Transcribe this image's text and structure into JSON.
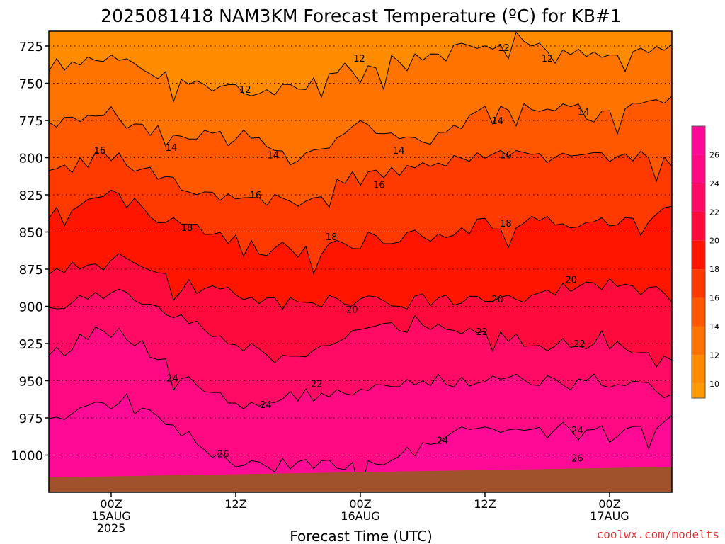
{
  "chart_data": {
    "type": "heatmap",
    "title": "2025081418 NAM3KM Forecast Temperature (ºC) for KB#1",
    "xlabel": "Forecast Time (UTC)",
    "ylabel": "",
    "y_axis": {
      "label": "",
      "ticks": [
        "725",
        "750",
        "775",
        "800",
        "825",
        "850",
        "875",
        "900",
        "925",
        "950",
        "975",
        "1000"
      ],
      "values": [
        725,
        750,
        775,
        800,
        825,
        850,
        875,
        900,
        925,
        950,
        975,
        1000
      ],
      "range": [
        715,
        1025
      ],
      "inverted": true,
      "grid": true
    },
    "x_axis": {
      "range_hours": [
        -6,
        54
      ],
      "ticks": [
        {
          "hour": 0,
          "line1": "00Z",
          "line2": "15AUG",
          "line3": "2025"
        },
        {
          "hour": 12,
          "line1": "12Z",
          "line2": "",
          "line3": ""
        },
        {
          "hour": 24,
          "line1": "00Z",
          "line2": "16AUG",
          "line3": ""
        },
        {
          "hour": 36,
          "line1": "12Z",
          "line2": "",
          "line3": ""
        },
        {
          "hour": 48,
          "line1": "00Z",
          "line2": "17AUG",
          "line3": ""
        }
      ]
    },
    "contour_levels": [
      12,
      14,
      16,
      18,
      20,
      22,
      24,
      26
    ],
    "contour_profiles": [
      {
        "level": 12,
        "hours": [
          -6,
          0,
          6,
          12,
          18,
          24,
          30,
          36,
          42,
          48,
          54
        ],
        "pressure": [
          738,
          735,
          748,
          755,
          752,
          737,
          735,
          723,
          725,
          731,
          725
        ]
      },
      {
        "level": 14,
        "hours": [
          -6,
          0,
          6,
          12,
          18,
          24,
          30,
          36,
          42,
          48,
          54
        ],
        "pressure": [
          780,
          768,
          788,
          782,
          798,
          780,
          790,
          770,
          765,
          770,
          760
        ]
      },
      {
        "level": 16,
        "hours": [
          -6,
          0,
          6,
          12,
          18,
          24,
          30,
          36,
          42,
          48,
          54
        ],
        "pressure": [
          810,
          798,
          818,
          828,
          830,
          812,
          806,
          800,
          800,
          800,
          796
        ]
      },
      {
        "level": 18,
        "hours": [
          -6,
          0,
          6,
          12,
          18,
          24,
          30,
          36,
          42,
          48,
          54
        ],
        "pressure": [
          840,
          823,
          845,
          857,
          866,
          855,
          852,
          845,
          842,
          845,
          837
        ]
      },
      {
        "level": 20,
        "hours": [
          -6,
          0,
          6,
          12,
          18,
          24,
          30,
          36,
          42,
          48,
          54
        ],
        "pressure": [
          875,
          865,
          885,
          892,
          900,
          895,
          895,
          895,
          890,
          885,
          893
        ]
      },
      {
        "level": 22,
        "hours": [
          -6,
          0,
          6,
          12,
          18,
          24,
          30,
          36,
          42,
          48,
          54
        ],
        "pressure": [
          905,
          888,
          908,
          925,
          935,
          915,
          910,
          920,
          925,
          925,
          937
        ]
      },
      {
        "level": 24,
        "hours": [
          -6,
          0,
          6,
          12,
          18,
          24,
          30,
          36,
          42,
          48,
          54
        ],
        "pressure": [
          935,
          912,
          940,
          970,
          960,
          960,
          950,
          950,
          950,
          950,
          960
        ]
      },
      {
        "level": 26,
        "hours": [
          -6,
          0,
          6,
          12,
          18,
          24,
          30,
          36,
          42,
          48,
          54
        ],
        "pressure": [
          975,
          965,
          980,
          1008,
          1005,
          1010,
          995,
          980,
          985,
          985,
          977
        ]
      }
    ],
    "contour_labels": [
      {
        "text": "12",
        "hour": 12.9,
        "p": 754
      },
      {
        "text": "12",
        "hour": 23.9,
        "p": 733
      },
      {
        "text": "12",
        "hour": 37.8,
        "p": 726
      },
      {
        "text": "12",
        "hour": 42.0,
        "p": 733
      },
      {
        "text": "14",
        "hour": 5.8,
        "p": 793
      },
      {
        "text": "14",
        "hour": 15.6,
        "p": 798
      },
      {
        "text": "14",
        "hour": 27.7,
        "p": 795
      },
      {
        "text": "14",
        "hour": 37.2,
        "p": 775
      },
      {
        "text": "14",
        "hour": 45.5,
        "p": 769
      },
      {
        "text": "16",
        "hour": -1.1,
        "p": 795
      },
      {
        "text": "16",
        "hour": 13.9,
        "p": 825
      },
      {
        "text": "16",
        "hour": 25.8,
        "p": 818
      },
      {
        "text": "16",
        "hour": 38.0,
        "p": 798
      },
      {
        "text": "18",
        "hour": 7.3,
        "p": 847
      },
      {
        "text": "18",
        "hour": 21.2,
        "p": 853
      },
      {
        "text": "18",
        "hour": 38.0,
        "p": 844
      },
      {
        "text": "20",
        "hour": 23.2,
        "p": 902
      },
      {
        "text": "20",
        "hour": 37.2,
        "p": 895
      },
      {
        "text": "20",
        "hour": 44.3,
        "p": 882
      },
      {
        "text": "22",
        "hour": 19.8,
        "p": 952
      },
      {
        "text": "22",
        "hour": 35.7,
        "p": 917
      },
      {
        "text": "22",
        "hour": 45.1,
        "p": 925
      },
      {
        "text": "24",
        "hour": 5.9,
        "p": 948
      },
      {
        "text": "24",
        "hour": 14.9,
        "p": 966
      },
      {
        "text": "24",
        "hour": 31.9,
        "p": 990
      },
      {
        "text": "24",
        "hour": 44.9,
        "p": 983
      },
      {
        "text": "26",
        "hour": 10.8,
        "p": 999
      },
      {
        "text": "26",
        "hour": 44.9,
        "p": 1002
      }
    ],
    "surface": {
      "pressure_start": 1015,
      "pressure_end": 1008,
      "color": "#a0522d"
    },
    "colorbar": {
      "ticks": [
        "10",
        "12",
        "14",
        "16",
        "18",
        "20",
        "22",
        "24",
        "26"
      ],
      "values": [
        10,
        12,
        14,
        16,
        18,
        20,
        22,
        24,
        26
      ],
      "range": [
        9,
        28
      ],
      "bins": [
        {
          "from": 9,
          "to": 10,
          "color": "#ff9a00"
        },
        {
          "from": 10,
          "to": 12,
          "color": "#ff8c00"
        },
        {
          "from": 12,
          "to": 14,
          "color": "#ff7400"
        },
        {
          "from": 14,
          "to": 16,
          "color": "#ff5800"
        },
        {
          "from": 16,
          "to": 18,
          "color": "#ff3a00"
        },
        {
          "from": 18,
          "to": 20,
          "color": "#ff1500"
        },
        {
          "from": 20,
          "to": 22,
          "color": "#ff0a3c"
        },
        {
          "from": 22,
          "to": 24,
          "color": "#ff0a64"
        },
        {
          "from": 24,
          "to": 26,
          "color": "#ff0a82"
        },
        {
          "from": 26,
          "to": 28,
          "color": "#ff0a96"
        }
      ]
    },
    "grid": true
  },
  "credit": "coolwx.com/modelts"
}
